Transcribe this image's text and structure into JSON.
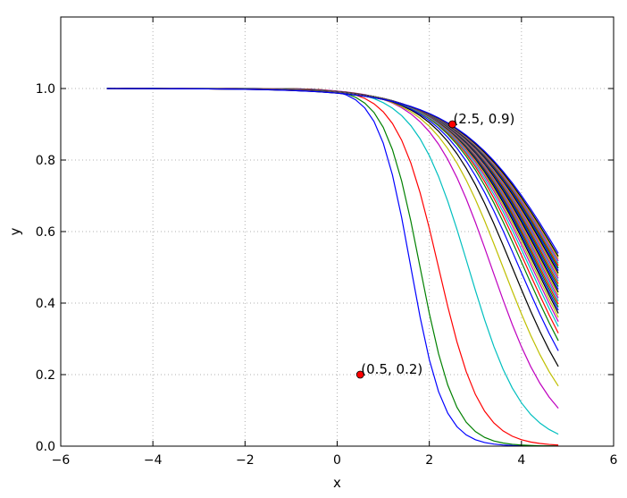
{
  "chart_data": {
    "type": "line",
    "title": "",
    "xlabel": "x",
    "ylabel": "y",
    "xlim": [
      -6,
      6
    ],
    "ylim": [
      0.0,
      1.2
    ],
    "x_ticks": [
      -6,
      -4,
      -2,
      0,
      2,
      4,
      6
    ],
    "x_tick_labels": [
      "−6",
      "−4",
      "−2",
      "0",
      "2",
      "4",
      "6"
    ],
    "y_ticks": [
      0.0,
      0.2,
      0.4,
      0.6,
      0.8,
      1.0
    ],
    "y_tick_labels": [
      "0.0",
      "0.2",
      "0.4",
      "0.6",
      "0.8",
      "1.0"
    ],
    "grid": true,
    "grid_style": "dotted",
    "legend": false,
    "x_range_of_curves": [
      -5,
      4.8
    ],
    "curves_description_hint": "family of decreasing sigmoid curves; each series given by midpoint and steepness",
    "series": [
      {
        "color": "#0000ff",
        "midpoint": 1.6,
        "steepness": 0.35
      },
      {
        "color": "#008000",
        "midpoint": 1.8,
        "steepness": 0.38
      },
      {
        "color": "#ff0000",
        "midpoint": 2.2,
        "steepness": 0.45
      },
      {
        "color": "#00bfbf",
        "midpoint": 2.85,
        "steepness": 0.58
      },
      {
        "color": "#bf00bf",
        "midpoint": 3.35,
        "steepness": 0.68
      },
      {
        "color": "#bfbf00",
        "midpoint": 3.6,
        "steepness": 0.75
      },
      {
        "color": "#000000",
        "midpoint": 3.8,
        "steepness": 0.8
      },
      {
        "color": "#0000ff",
        "midpoint": 3.95,
        "steepness": 0.84
      },
      {
        "color": "#008000",
        "midpoint": 4.05,
        "steepness": 0.86
      },
      {
        "color": "#ff0000",
        "midpoint": 4.12,
        "steepness": 0.88
      },
      {
        "color": "#00bfbf",
        "midpoint": 4.18,
        "steepness": 0.9
      },
      {
        "color": "#bf00bf",
        "midpoint": 4.23,
        "steepness": 0.91
      },
      {
        "color": "#bfbf00",
        "midpoint": 4.27,
        "steepness": 0.92
      },
      {
        "color": "#000000",
        "midpoint": 4.31,
        "steepness": 0.93
      },
      {
        "color": "#0000ff",
        "midpoint": 4.34,
        "steepness": 0.94
      },
      {
        "color": "#008000",
        "midpoint": 4.37,
        "steepness": 0.95
      },
      {
        "color": "#ff0000",
        "midpoint": 4.4,
        "steepness": 0.96
      },
      {
        "color": "#00bfbf",
        "midpoint": 4.43,
        "steepness": 0.97
      },
      {
        "color": "#bf00bf",
        "midpoint": 4.46,
        "steepness": 0.98
      },
      {
        "color": "#bfbf00",
        "midpoint": 4.49,
        "steepness": 0.99
      },
      {
        "color": "#000000",
        "midpoint": 4.52,
        "steepness": 1.0
      },
      {
        "color": "#0000ff",
        "midpoint": 4.55,
        "steepness": 1.01
      },
      {
        "color": "#008000",
        "midpoint": 4.58,
        "steepness": 1.02
      },
      {
        "color": "#ff0000",
        "midpoint": 4.61,
        "steepness": 1.03
      },
      {
        "color": "#00bfbf",
        "midpoint": 4.64,
        "steepness": 1.04
      },
      {
        "color": "#bf00bf",
        "midpoint": 4.67,
        "steepness": 1.05
      },
      {
        "color": "#bfbf00",
        "midpoint": 4.7,
        "steepness": 1.06
      },
      {
        "color": "#000000",
        "midpoint": 4.73,
        "steepness": 1.07
      },
      {
        "color": "#0000ff",
        "midpoint": 4.76,
        "steepness": 1.08
      },
      {
        "color": "#008000",
        "midpoint": 4.79,
        "steepness": 1.09
      },
      {
        "color": "#ff0000",
        "midpoint": 4.82,
        "steepness": 1.1
      },
      {
        "color": "#00bfbf",
        "midpoint": 4.85,
        "steepness": 1.11
      },
      {
        "color": "#bf00bf",
        "midpoint": 4.88,
        "steepness": 1.12
      },
      {
        "color": "#bfbf00",
        "midpoint": 4.91,
        "steepness": 1.13
      },
      {
        "color": "#000000",
        "midpoint": 4.94,
        "steepness": 1.14
      },
      {
        "color": "#0000ff",
        "midpoint": 4.98,
        "steepness": 1.15
      }
    ],
    "annotations": [
      {
        "x": 2.5,
        "y": 0.9,
        "text": "(2.5, 0.9)",
        "marker_color": "#ff0000"
      },
      {
        "x": 0.5,
        "y": 0.2,
        "text": "(0.5, 0.2)",
        "marker_color": "#ff0000"
      }
    ]
  }
}
